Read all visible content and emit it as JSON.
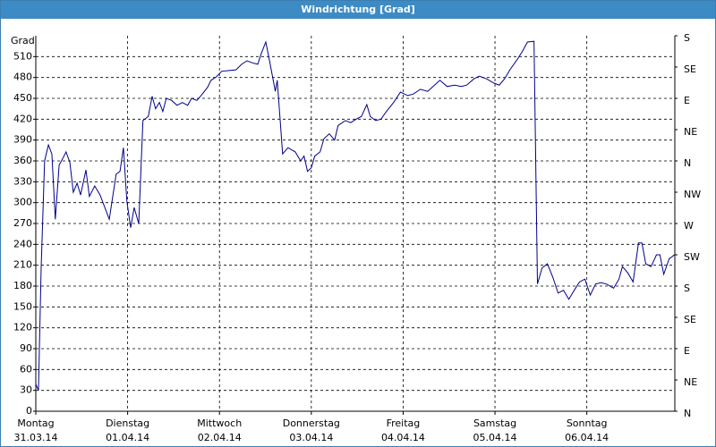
{
  "window_title": "Windrichtung [Grad]",
  "chart_data": {
    "type": "line",
    "ylabel": "Grad",
    "xlim": [
      0,
      167
    ],
    "xticks": [
      {
        "value": 0,
        "label": "Montag"
      },
      {
        "value": 24,
        "label": "Dienstag"
      },
      {
        "value": 48,
        "label": "Mittwoch"
      },
      {
        "value": 72,
        "label": "Donnerstag"
      },
      {
        "value": 96,
        "label": "Freitag"
      },
      {
        "value": 120,
        "label": "Samstag"
      },
      {
        "value": 144,
        "label": "Sonntag"
      }
    ],
    "xtick_dates": [
      "31.03.14",
      "01.04.14",
      "02.04.14",
      "03.04.14",
      "04.04.14",
      "05.04.14",
      "06.04.14"
    ],
    "ylim": [
      0,
      540
    ],
    "yticks": [
      0,
      30,
      60,
      90,
      120,
      150,
      180,
      210,
      240,
      270,
      300,
      330,
      360,
      390,
      420,
      450,
      480,
      510
    ],
    "y2lim": [
      0,
      540
    ],
    "y2ticks": [
      {
        "value": 540,
        "label": "S"
      },
      {
        "value": 495,
        "label": "SE"
      },
      {
        "value": 450,
        "label": "E"
      },
      {
        "value": 405,
        "label": "NE"
      },
      {
        "value": 360,
        "label": "N"
      },
      {
        "value": 315,
        "label": "NW"
      },
      {
        "value": 270,
        "label": "W"
      },
      {
        "value": 225,
        "label": "SW"
      },
      {
        "value": 180,
        "label": "S"
      },
      {
        "value": 135,
        "label": "SE"
      },
      {
        "value": 90,
        "label": "E"
      },
      {
        "value": 45,
        "label": "NE"
      },
      {
        "value": 0,
        "label": "N"
      }
    ],
    "grid": true,
    "x": [
      0,
      0.7,
      1.4,
      2.3,
      3.3,
      4.2,
      5.1,
      6.1,
      7.0,
      7.9,
      8.9,
      9.8,
      10.8,
      11.7,
      13.1,
      14.0,
      15.4,
      16.8,
      19.2,
      21.0,
      22.0,
      22.9,
      23.8,
      24.8,
      25.7,
      26.9,
      28.0,
      29.4,
      30.4,
      31.3,
      32.3,
      33.2,
      34.1,
      35.5,
      36.9,
      38.3,
      39.7,
      40.7,
      42.1,
      43.5,
      44.9,
      45.8,
      47.2,
      48.6,
      50.5,
      52.3,
      53.8,
      55.2,
      56.6,
      58.0,
      58.9,
      60.1,
      60.8,
      61.7,
      62.6,
      63.1,
      64.5,
      65.9,
      67.8,
      69.2,
      70.1,
      71.0,
      72.0,
      72.9,
      74.3,
      75.3,
      76.7,
      78.1,
      79.0,
      80.9,
      82.3,
      83.7,
      85.1,
      86.5,
      87.4,
      88.8,
      90.2,
      91.6,
      93.5,
      95.3,
      97.2,
      98.6,
      100.5,
      102.4,
      104.2,
      105.6,
      107.5,
      109.4,
      111.2,
      112.6,
      114.5,
      115.9,
      117.8,
      119.7,
      121.1,
      122.5,
      123.9,
      125.7,
      127.1,
      128.5,
      130.2,
      131.1,
      132.3,
      133.7,
      135.1,
      136.5,
      137.9,
      139.3,
      140.7,
      142.1,
      143.5,
      144.9,
      146.3,
      147.7,
      149.1,
      151.0,
      152.4,
      153.3,
      154.7,
      156.1,
      157.5,
      158.4,
      159.4,
      160.8,
      162.2,
      163.1,
      164.1,
      165.5,
      166.9
    ],
    "series": [
      {
        "name": "Windrichtung",
        "color": "#00008b",
        "values": [
          39,
          30,
          206,
          360,
          383,
          370,
          276,
          354,
          363,
          373,
          358,
          315,
          328,
          311,
          347,
          309,
          324,
          311,
          276,
          341,
          345,
          379,
          302,
          264,
          293,
          270,
          418,
          424,
          453,
          435,
          444,
          431,
          450,
          447,
          440,
          444,
          440,
          450,
          447,
          456,
          466,
          476,
          481,
          489,
          490,
          491,
          499,
          504,
          501,
          499,
          514,
          531,
          512,
          486,
          460,
          476,
          370,
          379,
          373,
          360,
          367,
          345,
          350,
          367,
          373,
          392,
          399,
          390,
          411,
          418,
          415,
          420,
          424,
          441,
          424,
          418,
          420,
          431,
          444,
          459,
          454,
          456,
          463,
          460,
          469,
          476,
          467,
          469,
          467,
          469,
          478,
          482,
          478,
          472,
          469,
          478,
          491,
          505,
          517,
          531,
          532,
          183,
          206,
          212,
          193,
          170,
          174,
          161,
          174,
          186,
          190,
          167,
          183,
          185,
          183,
          177,
          190,
          208,
          199,
          186,
          242,
          242,
          212,
          208,
          225,
          225,
          197,
          219,
          225
        ]
      }
    ]
  }
}
